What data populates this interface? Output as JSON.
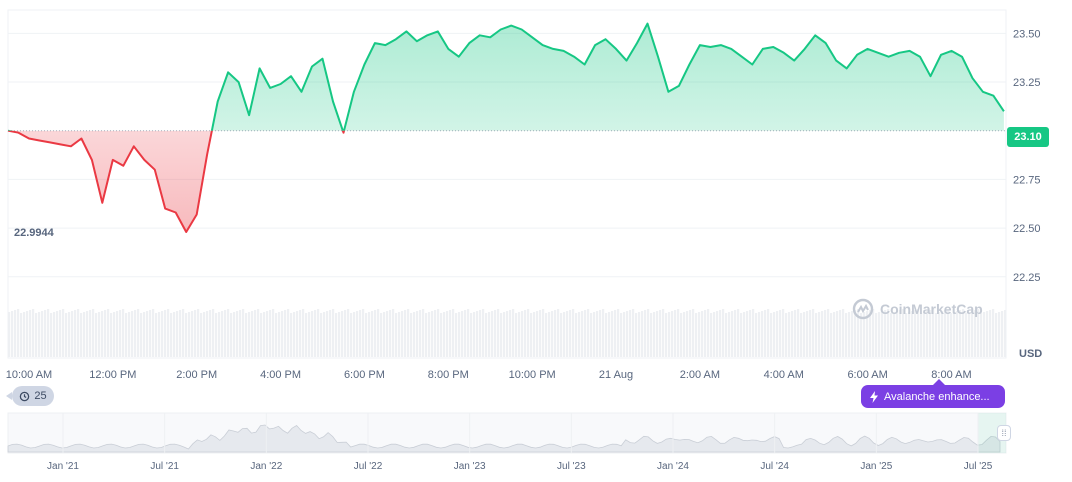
{
  "chart_data": {
    "type": "line",
    "unit": "USD",
    "baseline": 23.0,
    "open_value_label": "22.9944",
    "current_value_label": "23.10",
    "ylim": [
      22.1,
      23.62
    ],
    "y_ticks": [
      "23.50",
      "23.25",
      "23.00",
      "22.75",
      "22.50",
      "22.25"
    ],
    "y_tick_values": [
      23.5,
      23.25,
      23.0,
      22.75,
      22.5,
      22.25
    ],
    "x_range": [
      9.5,
      33.3
    ],
    "x_ticks": [
      {
        "t": 10,
        "label": "10:00 AM"
      },
      {
        "t": 12,
        "label": "12:00 PM"
      },
      {
        "t": 14,
        "label": "2:00 PM"
      },
      {
        "t": 16,
        "label": "4:00 PM"
      },
      {
        "t": 18,
        "label": "6:00 PM"
      },
      {
        "t": 20,
        "label": "8:00 PM"
      },
      {
        "t": 22,
        "label": "10:00 PM"
      },
      {
        "t": 24,
        "label": "21 Aug"
      },
      {
        "t": 26,
        "label": "2:00 AM"
      },
      {
        "t": 28,
        "label": "4:00 AM"
      },
      {
        "t": 30,
        "label": "6:00 AM"
      },
      {
        "t": 32,
        "label": "8:00 AM"
      }
    ],
    "x": [
      9.5,
      9.75,
      10,
      10.25,
      10.5,
      10.75,
      11,
      11.25,
      11.5,
      11.75,
      12,
      12.25,
      12.5,
      12.75,
      13,
      13.25,
      13.5,
      13.75,
      14,
      14.25,
      14.5,
      14.75,
      15,
      15.25,
      15.5,
      15.75,
      16,
      16.25,
      16.5,
      16.75,
      17,
      17.25,
      17.5,
      17.75,
      18,
      18.25,
      18.5,
      18.75,
      19,
      19.25,
      19.5,
      19.75,
      20,
      20.25,
      20.5,
      20.75,
      21,
      21.25,
      21.5,
      21.75,
      22,
      22.25,
      22.5,
      22.75,
      23,
      23.25,
      23.5,
      23.75,
      24,
      24.25,
      24.5,
      24.75,
      25,
      25.25,
      25.5,
      25.75,
      26,
      26.25,
      26.5,
      26.75,
      27,
      27.25,
      27.5,
      27.75,
      28,
      28.25,
      28.5,
      28.75,
      29,
      29.25,
      29.5,
      29.75,
      30,
      30.25,
      30.5,
      30.75,
      31,
      31.25,
      31.5,
      31.75,
      32,
      32.25,
      32.5,
      32.75,
      33,
      33.25
    ],
    "y": [
      23.0,
      22.99,
      22.96,
      22.95,
      22.94,
      22.93,
      22.92,
      22.96,
      22.85,
      22.63,
      22.85,
      22.82,
      22.92,
      22.85,
      22.8,
      22.6,
      22.58,
      22.48,
      22.57,
      22.88,
      23.15,
      23.3,
      23.25,
      23.08,
      23.32,
      23.22,
      23.24,
      23.28,
      23.2,
      23.33,
      23.37,
      23.15,
      22.99,
      23.2,
      23.34,
      23.45,
      23.44,
      23.47,
      23.51,
      23.46,
      23.49,
      23.51,
      23.42,
      23.38,
      23.45,
      23.49,
      23.48,
      23.52,
      23.54,
      23.52,
      23.48,
      23.44,
      23.42,
      23.41,
      23.38,
      23.34,
      23.44,
      23.47,
      23.42,
      23.36,
      23.45,
      23.55,
      23.38,
      23.2,
      23.23,
      23.34,
      23.44,
      23.43,
      23.44,
      23.42,
      23.38,
      23.34,
      23.42,
      23.43,
      23.4,
      23.36,
      23.42,
      23.49,
      23.45,
      23.36,
      23.32,
      23.39,
      23.42,
      23.4,
      23.38,
      23.4,
      23.41,
      23.38,
      23.28,
      23.39,
      23.41,
      23.38,
      23.27,
      23.2,
      23.18,
      23.1
    ],
    "colors": {
      "up": "#16c784",
      "down": "#ea3943",
      "grid": "#eff2f5",
      "baseline": "#a7b1c2"
    }
  },
  "navigator": {
    "x_ticks": [
      "Jan '21",
      "Jul '21",
      "Jan '22",
      "Jul '22",
      "Jan '23",
      "Jul '23",
      "Jan '24",
      "Jul '24",
      "Jan '25",
      "Jul '25"
    ]
  },
  "ui": {
    "reset_count": "25",
    "promo_label": "Avalanche enhance...",
    "watermark": "CoinMarketCap",
    "unit_label": "USD",
    "handle_glyph": "⁞⁞"
  }
}
